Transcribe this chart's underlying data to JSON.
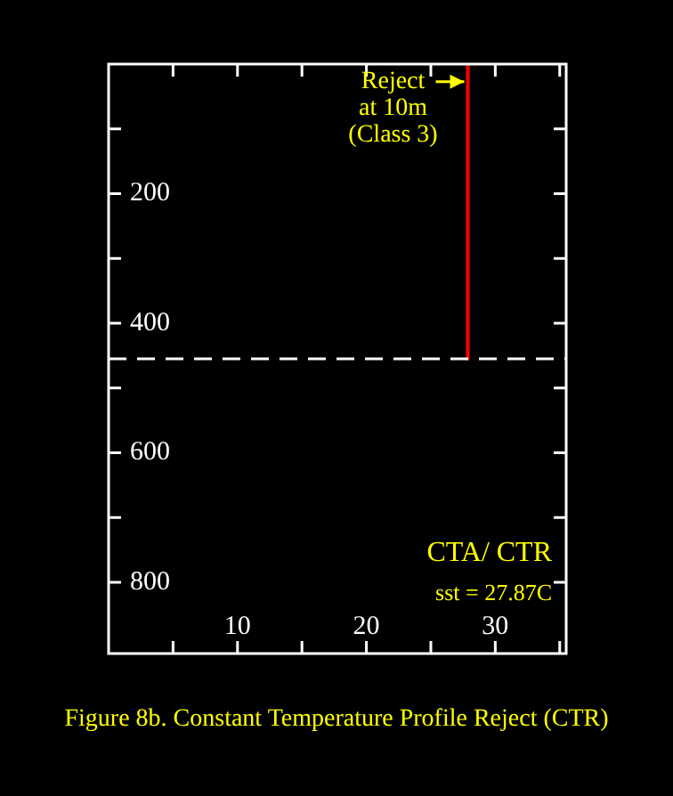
{
  "chart_data": {
    "type": "line",
    "title": "Figure 8b. Constant Temperature Profile Reject (CTR)",
    "xlim": [
      0,
      35.5
    ],
    "xticks": [
      {
        "value": 5,
        "label": null
      },
      10,
      {
        "value": 15,
        "label": null
      },
      20,
      {
        "value": 25,
        "label": null
      },
      30,
      {
        "value": 35,
        "label": null
      }
    ],
    "ylim": [
      910,
      0
    ],
    "yticks": [
      {
        "value": 100,
        "label": null
      },
      200,
      {
        "value": 300,
        "label": null
      },
      400,
      {
        "value": 500,
        "label": null
      },
      600,
      {
        "value": 700,
        "label": null
      },
      800
    ],
    "series": [
      {
        "x": [
          27.87,
          27.87
        ],
        "values": [
          0,
          455
        ],
        "color": "#ff0000"
      }
    ],
    "ref_lines": [
      {
        "axis": "y",
        "value": 455,
        "color": "#ffffff",
        "line_style": "dashed"
      }
    ],
    "annotations": [
      {
        "text": "Reject\nat 10m\n(Class 3)",
        "x": 27.87,
        "y": 27
      },
      "CTA/ CTR",
      "sst = 27.87C"
    ]
  }
}
